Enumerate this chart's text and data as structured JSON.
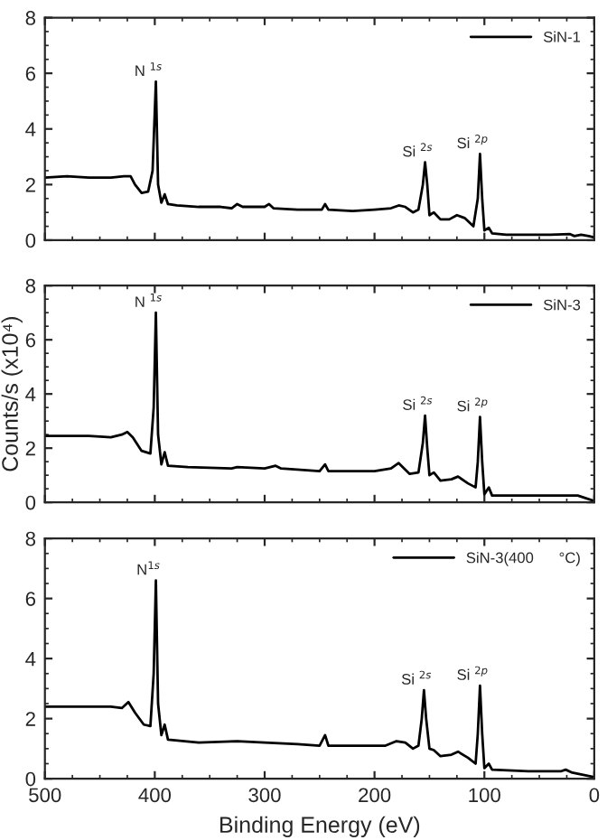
{
  "chart_data": [
    {
      "type": "line",
      "xlim": [
        500,
        0
      ],
      "ylim": [
        0,
        8
      ],
      "xticks": [
        500,
        400,
        300,
        200,
        100,
        0
      ],
      "yticks": [
        0,
        2,
        4,
        6,
        8
      ],
      "tick_labels": "y",
      "legend": "top right",
      "grid": false,
      "annotations": [
        {
          "text": "N $^{1s}$",
          "x": 399,
          "y": 5.7
        },
        {
          "text": "Si $^{2s}$",
          "x": 154,
          "y": 2.8
        },
        {
          "text": "Si $^{2p}$",
          "x": 104,
          "y": 3.1
        }
      ],
      "series": [
        {
          "name": "SiN-1",
          "color": "#000000",
          "x": [
            500,
            480,
            460,
            440,
            428,
            422,
            418,
            412,
            406,
            402,
            399,
            397,
            394,
            391,
            388,
            380,
            360,
            340,
            330,
            325,
            320,
            300,
            296,
            292,
            270,
            248,
            245,
            242,
            220,
            200,
            185,
            178,
            172,
            165,
            160,
            156,
            154,
            152,
            150,
            146,
            140,
            132,
            125,
            118,
            110,
            106,
            104,
            102,
            100,
            96,
            93,
            80,
            60,
            40,
            22,
            18,
            12,
            5,
            0
          ],
          "values": [
            2.25,
            2.3,
            2.25,
            2.25,
            2.3,
            2.3,
            2.0,
            1.7,
            1.75,
            2.5,
            5.7,
            2.0,
            1.35,
            1.65,
            1.3,
            1.25,
            1.2,
            1.2,
            1.15,
            1.3,
            1.2,
            1.2,
            1.3,
            1.15,
            1.1,
            1.1,
            1.3,
            1.1,
            1.05,
            1.1,
            1.15,
            1.25,
            1.2,
            1.0,
            1.1,
            2.0,
            2.8,
            2.0,
            0.9,
            1.0,
            0.75,
            0.75,
            0.9,
            0.8,
            0.5,
            1.5,
            3.1,
            1.5,
            0.35,
            0.45,
            0.25,
            0.2,
            0.2,
            0.2,
            0.22,
            0.15,
            0.2,
            0.15,
            0.1
          ]
        }
      ]
    },
    {
      "type": "line",
      "xlim": [
        500,
        0
      ],
      "ylim": [
        0,
        8
      ],
      "xticks": [
        500,
        400,
        300,
        200,
        100,
        0
      ],
      "yticks": [
        0,
        2,
        4,
        6,
        8
      ],
      "tick_labels": "y",
      "legend": "top right",
      "grid": false,
      "ylabel": "Counts/s (x10⁴)",
      "annotations": [
        {
          "text": "N $^{1s}$",
          "x": 399,
          "y": 7.0
        },
        {
          "text": "Si $^{2s}$",
          "x": 154,
          "y": 3.2
        },
        {
          "text": "Si $^{2p}$",
          "x": 104,
          "y": 3.15
        }
      ],
      "series": [
        {
          "name": "SiN-3",
          "color": "#000000",
          "x": [
            500,
            460,
            440,
            430,
            425,
            420,
            412,
            404,
            401,
            399,
            397,
            394,
            391,
            388,
            370,
            330,
            325,
            300,
            290,
            285,
            250,
            245,
            242,
            200,
            185,
            178,
            168,
            160,
            156,
            154,
            152,
            150,
            146,
            140,
            130,
            124,
            115,
            108,
            106,
            104,
            102,
            100,
            96,
            93,
            60,
            30,
            15,
            0
          ],
          "values": [
            2.45,
            2.45,
            2.4,
            2.5,
            2.6,
            2.4,
            1.9,
            1.8,
            3.5,
            7.0,
            2.5,
            1.4,
            1.85,
            1.35,
            1.3,
            1.25,
            1.3,
            1.25,
            1.35,
            1.25,
            1.15,
            1.4,
            1.15,
            1.15,
            1.25,
            1.45,
            1.05,
            1.1,
            2.2,
            3.2,
            2.0,
            1.0,
            1.1,
            0.8,
            0.85,
            0.95,
            0.7,
            0.55,
            1.5,
            3.15,
            1.5,
            0.3,
            0.55,
            0.25,
            0.25,
            0.25,
            0.25,
            0.05
          ]
        }
      ]
    },
    {
      "type": "line",
      "xlim": [
        500,
        0
      ],
      "ylim": [
        0,
        8
      ],
      "xticks": [
        500,
        400,
        300,
        200,
        100,
        0
      ],
      "yticks": [
        0,
        2,
        4,
        6,
        8
      ],
      "legend": "top right",
      "grid": false,
      "xlabel": "Binding Energy (eV)",
      "annotations": [
        {
          "text": "N$^{1s}$",
          "x": 399,
          "y": 6.6
        },
        {
          "text": "Si $^{2s}$",
          "x": 155,
          "y": 2.95
        },
        {
          "text": "Si $^{2p}$",
          "x": 104,
          "y": 3.1
        }
      ],
      "series": [
        {
          "name": "SiN-3(400      °C)",
          "color": "#000000",
          "x": [
            500,
            470,
            440,
            430,
            424,
            418,
            410,
            404,
            401,
            399,
            397,
            394,
            391,
            388,
            360,
            325,
            300,
            270,
            250,
            245,
            242,
            220,
            190,
            180,
            172,
            165,
            160,
            157,
            155,
            153,
            150,
            146,
            140,
            130,
            124,
            115,
            108,
            106,
            104,
            102,
            100,
            96,
            93,
            60,
            30,
            26,
            20,
            0
          ],
          "values": [
            2.4,
            2.4,
            2.4,
            2.35,
            2.55,
            2.2,
            1.8,
            1.75,
            3.5,
            6.6,
            2.5,
            1.45,
            1.8,
            1.3,
            1.2,
            1.25,
            1.2,
            1.15,
            1.1,
            1.45,
            1.1,
            1.1,
            1.1,
            1.25,
            1.2,
            1.0,
            1.1,
            2.0,
            2.95,
            2.0,
            1.0,
            0.95,
            0.75,
            0.8,
            0.9,
            0.7,
            0.5,
            1.5,
            3.1,
            1.5,
            0.35,
            0.5,
            0.3,
            0.25,
            0.25,
            0.3,
            0.2,
            0.05
          ]
        }
      ]
    }
  ]
}
